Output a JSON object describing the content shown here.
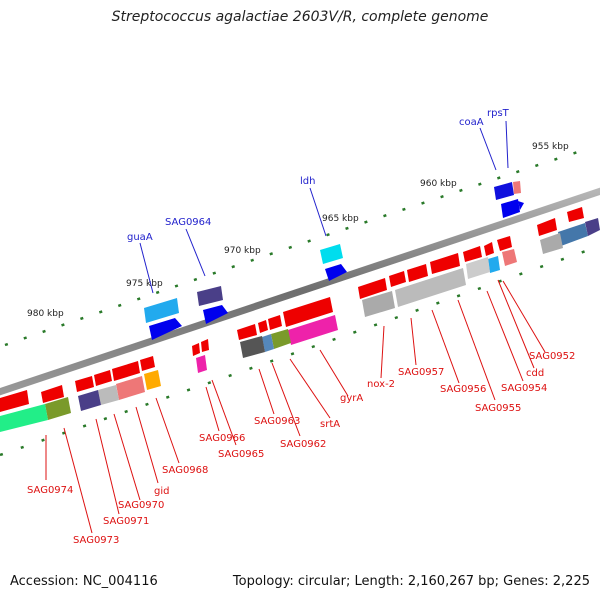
{
  "title": "Streptococcus agalactiae 2603V/R, complete genome",
  "footer": {
    "accession": "Accession: NC_004116",
    "summary": "Topology: circular; Length: 2,160,267 bp; Genes: 2,225"
  },
  "ticks": [
    "955 kbp",
    "960 kbp",
    "965 kbp",
    "970 kbp",
    "975 kbp",
    "980 kbp"
  ],
  "labels_top": [
    "rpsT",
    "coaA",
    "ldh",
    "SAG0964",
    "guaA"
  ],
  "labels_bottom": [
    "SAG0952",
    "cdd",
    "SAG0954",
    "SAG0955",
    "SAG0956",
    "SAG0957",
    "nox-2",
    "gyrA",
    "srtA",
    "SAG0962",
    "SAG0963",
    "SAG0965",
    "SAG0966",
    "SAG0968",
    "gid",
    "SAG0970",
    "SAG0971",
    "SAG0973",
    "SAG0974"
  ],
  "colors": {
    "backbone": "#777777",
    "tick": "#2a7a2a",
    "forward_genes": "#0000ee",
    "reverse_genes": "#ee0000",
    "label_forward": "#2222cc",
    "label_reverse": "#dd1111"
  }
}
